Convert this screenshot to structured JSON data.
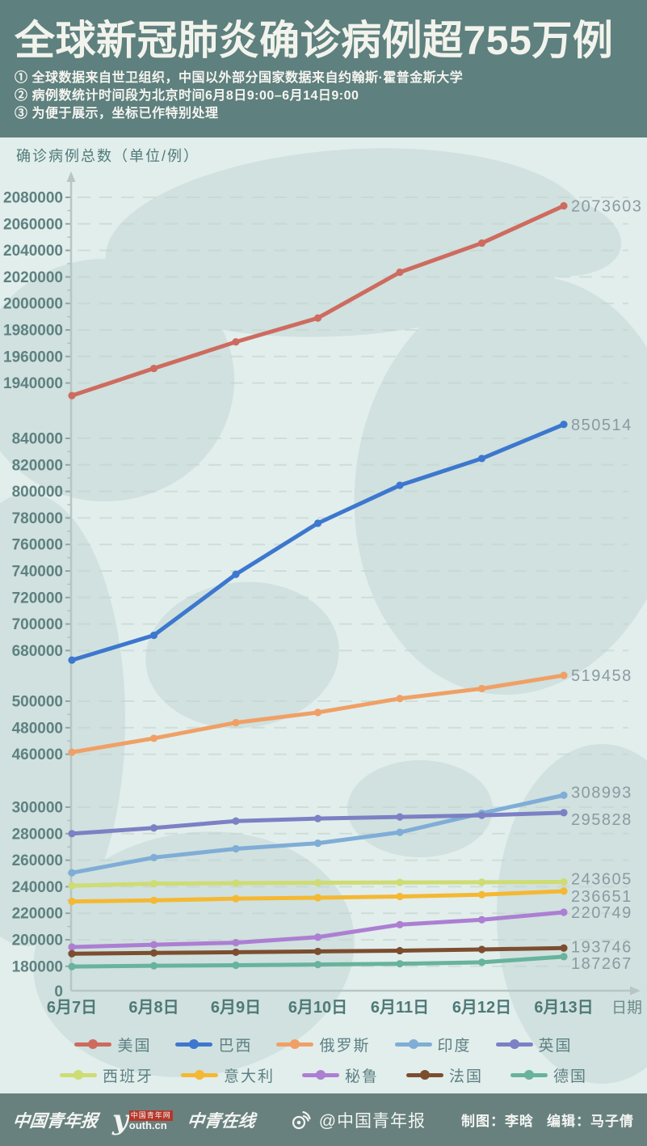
{
  "header": {
    "title": "全球新冠肺炎确诊病例超755万例",
    "notes": [
      "① 全球数据来自世卫组织，中国以外部分国家数据来自约翰斯·霍普金斯大学",
      "② 病例数统计时间段为北京时间6月8日9:00–6月14日9:00",
      "③ 为便于展示，坐标已作特别处理"
    ]
  },
  "chart_data": {
    "type": "line",
    "title": "确诊病例总数（单位/例）",
    "xlabel": "日期",
    "grid": true,
    "legend_position": "bottom",
    "axis_note": "broken y-axis (coordinates specially compressed between sections)",
    "categories": [
      "6月7日",
      "6月8日",
      "6月9日",
      "6月10日",
      "6月11日",
      "6月12日",
      "6月13日"
    ],
    "y_axis": {
      "ticks": [
        2080000,
        2060000,
        2040000,
        2020000,
        2000000,
        1980000,
        1960000,
        1940000,
        840000,
        820000,
        800000,
        780000,
        760000,
        740000,
        720000,
        700000,
        680000,
        500000,
        480000,
        460000,
        300000,
        280000,
        260000,
        240000,
        220000,
        200000,
        180000
      ],
      "zero_label": "0"
    },
    "series": [
      {
        "name": "美国",
        "color": "#CE6B5F",
        "end_label": "2073603",
        "values": [
          1930500,
          1951000,
          1971000,
          1989000,
          2023500,
          2045500,
          2073603
        ]
      },
      {
        "name": "巴西",
        "color": "#3D77CE",
        "end_label": "850514",
        "values": [
          672800,
          691500,
          737500,
          776000,
          804600,
          824800,
          850514
        ]
      },
      {
        "name": "俄罗斯",
        "color": "#F0A066",
        "end_label": "519458",
        "values": [
          461500,
          472000,
          483800,
          491500,
          502000,
          509500,
          519458
        ]
      },
      {
        "name": "印度",
        "color": "#7FADD6",
        "end_label": "308993",
        "values": [
          250500,
          262000,
          268600,
          272800,
          281000,
          295400,
          308993
        ]
      },
      {
        "name": "英国",
        "color": "#7C80C4",
        "end_label": "295828",
        "values": [
          280000,
          284300,
          289500,
          291400,
          292600,
          293800,
          295828
        ]
      },
      {
        "name": "西班牙",
        "color": "#CEDC72",
        "end_label": "243605",
        "values": [
          240800,
          242300,
          242700,
          243000,
          243200,
          243400,
          243605
        ]
      },
      {
        "name": "意大利",
        "color": "#F5B832",
        "end_label": "236651",
        "values": [
          228900,
          229700,
          231000,
          231700,
          232600,
          234000,
          236651
        ]
      },
      {
        "name": "秘鲁",
        "color": "#AC7FD2",
        "end_label": "220749",
        "values": [
          194500,
          196300,
          197800,
          202000,
          211400,
          215100,
          220749
        ]
      },
      {
        "name": "法国",
        "color": "#7C4E2F",
        "end_label": "193746",
        "values": [
          189500,
          190100,
          190600,
          191200,
          191800,
          192700,
          193746
        ]
      },
      {
        "name": "德国",
        "color": "#68B39B",
        "end_label": "187267",
        "values": [
          179800,
          180400,
          180800,
          181300,
          181900,
          183000,
          187267
        ]
      }
    ]
  },
  "colors": {
    "header_bg": "#5E807E",
    "footer_bg": "#68817E",
    "page_bg": "#E1EEEC",
    "map_shape": "#D0E1DF",
    "title_text": "#F2F3EC",
    "tick_label": "#5E8181",
    "value_label": "#8A9AA2"
  },
  "footer": {
    "logo_cyd": "中国青年报",
    "logo_youth_y": "y",
    "logo_youth_top": "中国青年网",
    "logo_youth_bottom": "outh.cn",
    "logo_zqzx": "中青在线",
    "weibo_handle": "@中国青年报",
    "credits_artist": "制图：李晗",
    "credits_editor": "编辑：马子倩"
  }
}
